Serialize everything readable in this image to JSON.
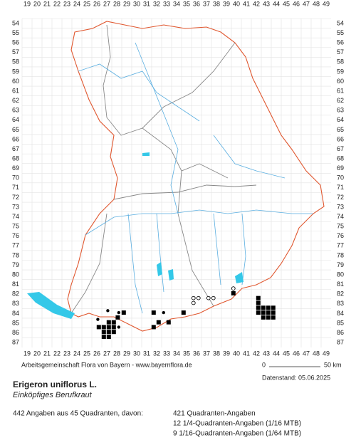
{
  "map": {
    "columns": [
      19,
      20,
      21,
      22,
      23,
      24,
      25,
      26,
      27,
      28,
      29,
      30,
      31,
      32,
      33,
      34,
      35,
      36,
      37,
      38,
      39,
      40,
      41,
      42,
      43,
      44,
      45,
      46,
      47,
      48,
      49
    ],
    "rows": [
      54,
      55,
      56,
      57,
      58,
      59,
      60,
      61,
      62,
      63,
      64,
      65,
      66,
      67,
      68,
      69,
      70,
      71,
      72,
      73,
      74,
      75,
      76,
      77,
      78,
      79,
      80,
      81,
      82,
      83,
      84,
      85,
      86,
      87
    ],
    "occurrences": [
      {
        "col": 26.1,
        "row": 84.6,
        "symbol": "dot"
      },
      {
        "col": 27.1,
        "row": 83.7,
        "symbol": "dot"
      },
      {
        "col": 26.2,
        "row": 85.4,
        "symbol": "square"
      },
      {
        "col": 26.7,
        "row": 85.4,
        "symbol": "square"
      },
      {
        "col": 27.2,
        "row": 85.4,
        "symbol": "square"
      },
      {
        "col": 27.7,
        "row": 85.4,
        "symbol": "square"
      },
      {
        "col": 26.7,
        "row": 85.9,
        "symbol": "square"
      },
      {
        "col": 27.2,
        "row": 85.9,
        "symbol": "square"
      },
      {
        "col": 27.7,
        "row": 85.9,
        "symbol": "square"
      },
      {
        "col": 26.7,
        "row": 86.4,
        "symbol": "square"
      },
      {
        "col": 27.2,
        "row": 86.4,
        "symbol": "square"
      },
      {
        "col": 27.7,
        "row": 84.9,
        "symbol": "square"
      },
      {
        "col": 27.2,
        "row": 84.9,
        "symbol": "square"
      },
      {
        "col": 28.1,
        "row": 84.4,
        "symbol": "square"
      },
      {
        "col": 28.2,
        "row": 85.4,
        "symbol": "dot"
      },
      {
        "col": 28.7,
        "row": 83.9,
        "symbol": "square"
      },
      {
        "col": 28.2,
        "row": 83.9,
        "symbol": "dot"
      },
      {
        "col": 31.7,
        "row": 83.9,
        "symbol": "square"
      },
      {
        "col": 31.7,
        "row": 85.4,
        "symbol": "square"
      },
      {
        "col": 32.2,
        "row": 84.9,
        "symbol": "square"
      },
      {
        "col": 32.7,
        "row": 83.9,
        "symbol": "dot"
      },
      {
        "col": 33.2,
        "row": 84.9,
        "symbol": "square"
      },
      {
        "col": 34.7,
        "row": 83.9,
        "symbol": "square"
      },
      {
        "col": 35.7,
        "row": 82.4,
        "symbol": "circle"
      },
      {
        "col": 35.7,
        "row": 82.9,
        "symbol": "circle"
      },
      {
        "col": 36.2,
        "row": 82.4,
        "symbol": "circle"
      },
      {
        "col": 37.2,
        "row": 82.4,
        "symbol": "circle"
      },
      {
        "col": 37.7,
        "row": 82.4,
        "symbol": "circle"
      },
      {
        "col": 39.7,
        "row": 81.4,
        "symbol": "circle"
      },
      {
        "col": 39.7,
        "row": 81.9,
        "symbol": "square"
      },
      {
        "col": 42.2,
        "row": 82.4,
        "symbol": "square"
      },
      {
        "col": 42.2,
        "row": 82.9,
        "symbol": "square"
      },
      {
        "col": 42.2,
        "row": 83.4,
        "symbol": "square"
      },
      {
        "col": 42.2,
        "row": 83.9,
        "symbol": "square"
      },
      {
        "col": 42.7,
        "row": 83.4,
        "symbol": "square"
      },
      {
        "col": 42.7,
        "row": 83.9,
        "symbol": "square"
      },
      {
        "col": 42.7,
        "row": 84.4,
        "symbol": "square"
      },
      {
        "col": 43.2,
        "row": 83.4,
        "symbol": "square"
      },
      {
        "col": 43.2,
        "row": 83.9,
        "symbol": "square"
      },
      {
        "col": 43.2,
        "row": 84.4,
        "symbol": "square"
      },
      {
        "col": 43.7,
        "row": 83.4,
        "symbol": "square"
      },
      {
        "col": 43.7,
        "row": 83.9,
        "symbol": "square"
      },
      {
        "col": 43.7,
        "row": 84.4,
        "symbol": "square"
      }
    ]
  },
  "footer": {
    "credit": "Arbeitsgemeinschaft Flora von Bayern - www.bayernflora.de",
    "scale_start": "0",
    "scale_end": "50 km",
    "date": "Datenstand: 05.06.2025",
    "species": "Erigeron uniflorus L.",
    "common_name": "Einköpfiges Berufkraut",
    "summary": "442 Angaben aus 45 Quadranten, davon:",
    "counts": [
      "421 Quadranten-Angaben",
      "12 1/4-Quadranten-Angaben (1/16 MTB)",
      "9 1/16-Quadranten-Angaben (1/64 MTB)"
    ]
  }
}
